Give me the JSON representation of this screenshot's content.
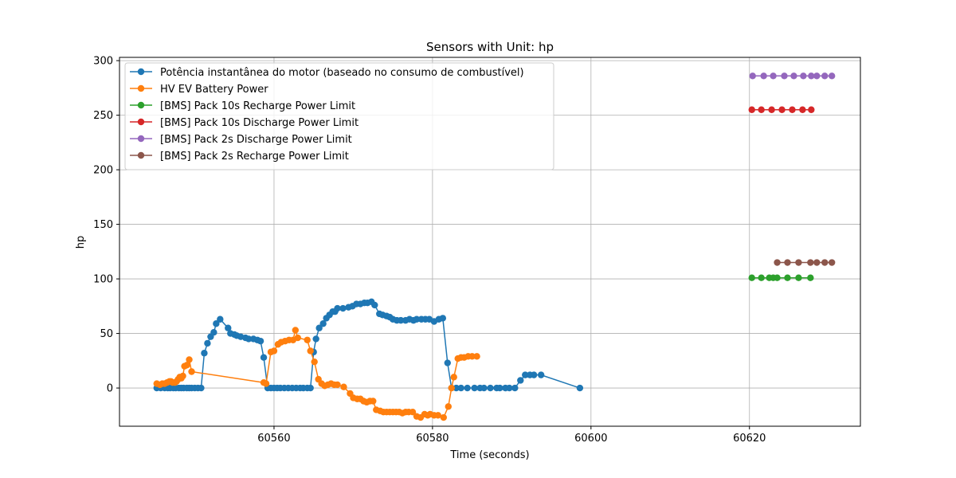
{
  "chart_data": {
    "type": "line",
    "title": "Sensors with Unit: hp",
    "xlabel": "Time (seconds)",
    "ylabel": "hp",
    "xlim": [
      60540.5,
      60634
    ],
    "ylim": [
      -35,
      303
    ],
    "xticks": [
      60560,
      60580,
      60600,
      60620
    ],
    "yticks": [
      0,
      50,
      100,
      150,
      200,
      250,
      300
    ],
    "grid": true,
    "legend_position": "upper-left",
    "series": [
      {
        "name": "Potência instantânea do motor (baseado no consumo de combustível)",
        "color": "#1f77b4",
        "x": [
          60545.2,
          60545.7,
          60546.2,
          60546.6,
          60546.9,
          60547.3,
          60547.6,
          60548.0,
          60548.3,
          60548.6,
          60549.0,
          60549.3,
          60549.6,
          60550.0,
          60550.4,
          60550.8,
          60551.2,
          60551.6,
          60552.0,
          60552.4,
          60552.7,
          60553.2,
          60554.2,
          60554.5,
          60555.0,
          60555.3,
          60555.8,
          60556.4,
          60556.8,
          60557.4,
          60557.9,
          60558.3,
          60558.7,
          60559.2,
          60559.6,
          60560.0,
          60560.4,
          60560.8,
          60561.3,
          60561.8,
          60562.3,
          60562.8,
          60563.3,
          60563.7,
          60564.2,
          60564.6,
          60565.0,
          60565.3,
          60565.7,
          60566.2,
          60566.6,
          60567.0,
          60567.4,
          60567.7,
          60568.0,
          60568.7,
          60569.4,
          60569.9,
          60570.4,
          60570.9,
          60571.4,
          60571.8,
          60572.3,
          60572.7,
          60573.3,
          60573.7,
          60574.2,
          60574.6,
          60575.0,
          60575.5,
          60576.0,
          60576.6,
          60577.1,
          60577.6,
          60578.0,
          60578.6,
          60579.1,
          60579.6,
          60580.2,
          60580.8,
          60581.3,
          60581.9,
          60582.4,
          60583.0,
          60583.6,
          60584.4,
          60585.3,
          60586.0,
          60586.5,
          60587.3,
          60588.1,
          60588.5,
          60589.2,
          60589.7,
          60590.4,
          60591.1,
          60591.7,
          60592.3,
          60592.8,
          60593.7,
          60598.6
        ],
        "y": [
          0,
          0,
          0,
          0,
          0,
          0,
          0,
          0,
          0,
          0,
          0,
          0,
          0,
          0,
          0,
          0,
          32,
          41,
          47,
          51,
          59,
          63,
          55,
          50,
          49,
          48,
          47,
          46,
          45,
          45,
          44,
          43,
          28,
          0,
          0,
          0,
          0,
          0,
          0,
          0,
          0,
          0,
          0,
          0,
          0,
          0,
          33,
          45,
          55,
          59,
          64,
          67,
          70,
          70,
          73,
          73,
          74,
          75,
          77,
          77,
          78,
          78,
          79,
          76,
          68,
          67,
          66,
          65,
          63,
          62,
          62,
          62,
          63,
          62,
          63,
          63,
          63,
          63,
          61,
          63,
          64,
          23,
          0,
          0,
          0,
          0,
          0,
          0,
          0,
          0,
          0,
          0,
          0,
          0,
          0,
          7,
          12,
          12,
          12,
          12,
          0
        ]
      },
      {
        "name": "HV EV Battery Power",
        "color": "#ff7f0e",
        "x": [
          60545.2,
          60545.6,
          60545.9,
          60546.2,
          60546.5,
          60546.8,
          60547.0,
          60547.2,
          60547.5,
          60547.7,
          60547.9,
          60548.1,
          60548.3,
          60548.5,
          60548.7,
          60549.0,
          60549.3,
          60549.6,
          60558.7,
          60559.0,
          60559.6,
          60560.0,
          60560.5,
          60560.9,
          60561.4,
          60561.9,
          60562.4,
          60562.7,
          60563.0,
          60564.2,
          60564.6,
          60565.1,
          60565.6,
          60566.0,
          60566.4,
          60566.8,
          60567.2,
          60567.6,
          60568.0,
          60568.8,
          60569.6,
          60570.0,
          60570.5,
          60570.9,
          60571.3,
          60571.7,
          60572.1,
          60572.5,
          60572.9,
          60573.4,
          60573.8,
          60574.2,
          60574.6,
          60575.0,
          60575.4,
          60575.8,
          60576.2,
          60576.6,
          60577.0,
          60577.5,
          60578.0,
          60578.5,
          60579.0,
          60579.4,
          60579.7,
          60580.2,
          60580.7,
          60581.4,
          60582.0,
          60582.4,
          60582.7,
          60583.2,
          60583.6,
          60584.0,
          60584.5,
          60585.0,
          60585.6
        ],
        "y": [
          4,
          3,
          4,
          4,
          5,
          6,
          6,
          5,
          5,
          6,
          8,
          10,
          9,
          11,
          20,
          21,
          26,
          15,
          5,
          4,
          33,
          34,
          40,
          42,
          43,
          44,
          44,
          53,
          46,
          44,
          34,
          24,
          8,
          4,
          2,
          3,
          4,
          3,
          3,
          1,
          -5,
          -9,
          -10,
          -10,
          -12,
          -13,
          -12,
          -12,
          -20,
          -21,
          -22,
          -22,
          -22,
          -22,
          -22,
          -22,
          -23,
          -22,
          -22,
          -22,
          -26,
          -27,
          -24,
          -25,
          -24,
          -25,
          -25,
          -27,
          -17,
          0,
          10,
          27,
          28,
          28,
          29,
          29,
          29
        ]
      },
      {
        "name": "[BMS] Pack 10s Recharge Power Limit",
        "color": "#2ca02c",
        "x": [
          60620.3,
          60621.5,
          60622.5,
          60623.0,
          60623.5,
          60624.8,
          60626.2,
          60627.7
        ],
        "y": [
          101,
          101,
          101,
          101,
          101,
          101,
          101,
          101
        ]
      },
      {
        "name": "[BMS] Pack 10s Discharge Power Limit",
        "color": "#d62728",
        "x": [
          60620.3,
          60621.5,
          60622.8,
          60624.1,
          60625.4,
          60626.7,
          60627.8
        ],
        "y": [
          255,
          255,
          255,
          255,
          255,
          255,
          255
        ]
      },
      {
        "name": "[BMS] Pack 2s Discharge Power Limit",
        "color": "#9467bd",
        "x": [
          60620.4,
          60621.8,
          60623.0,
          60624.4,
          60625.6,
          60626.8,
          60627.8,
          60628.5,
          60629.5,
          60630.4
        ],
        "y": [
          286,
          286,
          286,
          286,
          286,
          286,
          286,
          286,
          286,
          286
        ]
      },
      {
        "name": "[BMS] Pack 2s Recharge Power Limit",
        "color": "#8c564b",
        "x": [
          60623.5,
          60624.8,
          60626.2,
          60627.7,
          60628.5,
          60629.5,
          60630.4
        ],
        "y": [
          115,
          115,
          115,
          115,
          115,
          115,
          115
        ]
      }
    ]
  }
}
